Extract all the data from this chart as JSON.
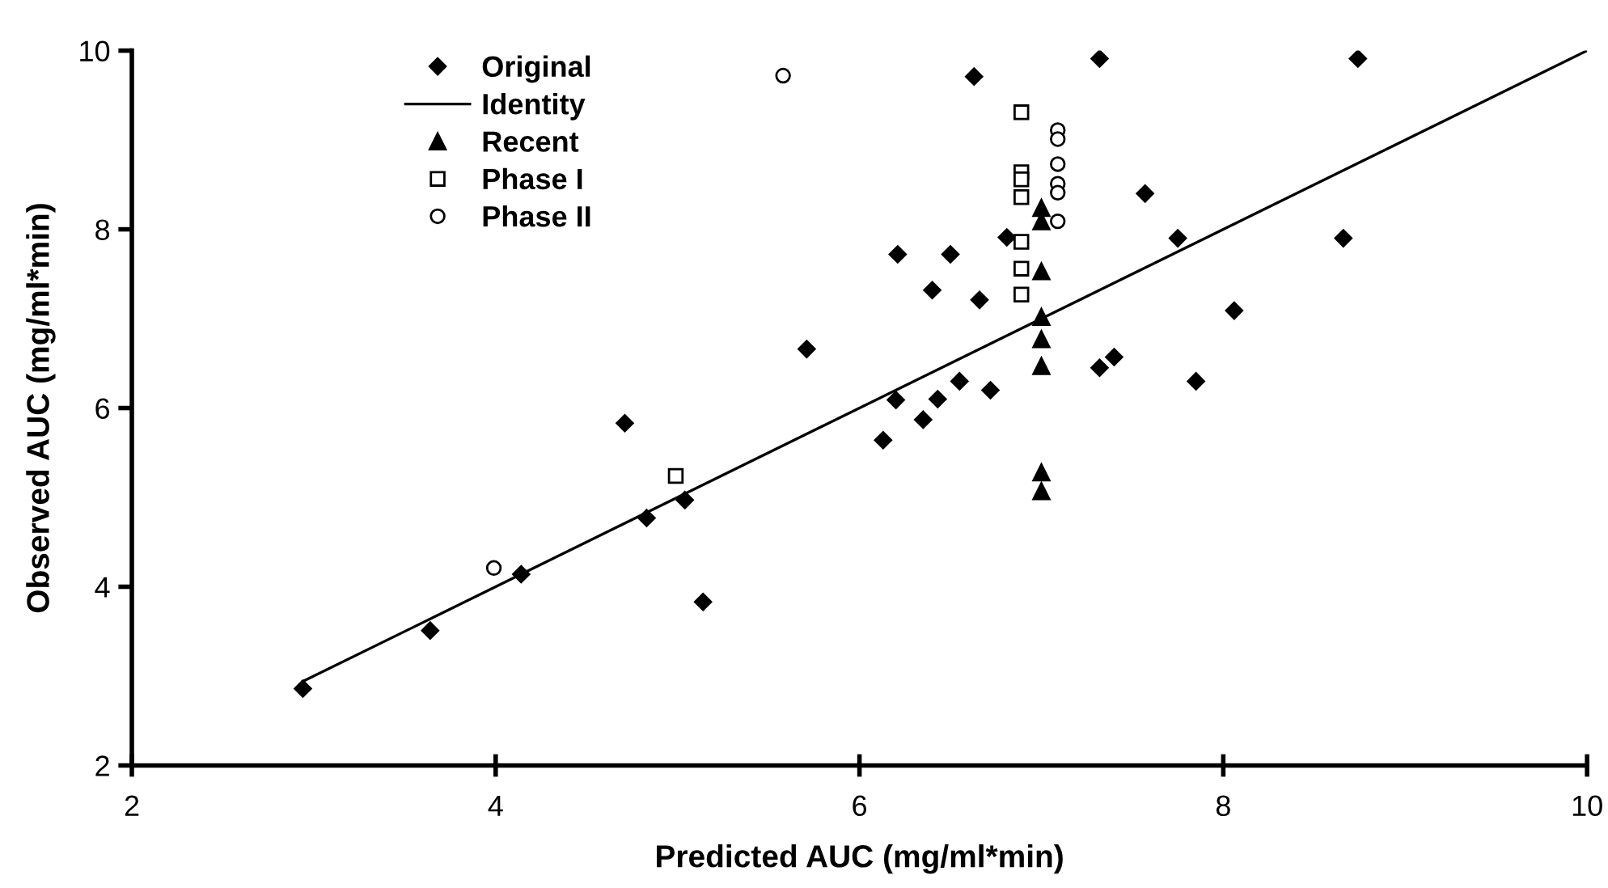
{
  "chart_data": {
    "type": "scatter",
    "xlabel": "Predicted AUC (mg/ml*min)",
    "ylabel": "Observed AUC (mg/ml*min)",
    "xlim": [
      2,
      10
    ],
    "ylim": [
      2,
      10
    ],
    "xticks": [
      2,
      4,
      6,
      8,
      10
    ],
    "yticks": [
      2,
      4,
      6,
      8,
      10
    ],
    "grid": false,
    "legend": "top left",
    "series": [
      {
        "name": "Original",
        "marker": "diamond",
        "color": "#000000",
        "x": [
          2.94,
          3.64,
          4.14,
          4.71,
          4.83,
          5.04,
          5.14,
          6.13,
          5.71,
          6.63,
          7.32,
          8.74,
          7.57,
          7.75,
          8.66,
          6.81,
          6.21,
          6.5,
          6.4,
          6.66,
          8.06,
          7.4,
          7.32,
          7.85,
          6.2,
          6.43,
          6.55,
          6.72,
          6.35
        ],
        "values": [
          2.86,
          3.51,
          4.14,
          5.83,
          4.77,
          4.97,
          3.83,
          5.64,
          6.66,
          9.71,
          9.91,
          9.91,
          8.4,
          7.9,
          7.9,
          7.91,
          7.72,
          7.72,
          7.32,
          7.21,
          7.09,
          6.57,
          6.45,
          6.3,
          6.09,
          6.1,
          6.3,
          6.2,
          5.87
        ]
      },
      {
        "name": "Identity",
        "type": "line",
        "marker": "none",
        "line_style": "solid",
        "color": "#000000",
        "x": [
          2.94,
          10
        ],
        "values": [
          2.94,
          10
        ]
      },
      {
        "name": "Recent",
        "marker": "triangle",
        "color": "#000000",
        "x": [
          7.0,
          7.0,
          7.0,
          7.0,
          7.0,
          7.0,
          7.0,
          7.0
        ],
        "values": [
          8.24,
          8.09,
          7.53,
          7.02,
          6.77,
          6.47,
          5.28,
          5.07
        ]
      },
      {
        "name": "Phase I",
        "marker": "square",
        "color": "#000000",
        "x": [
          4.99,
          6.89,
          6.89,
          6.89,
          6.89,
          6.89,
          6.89,
          6.89
        ],
        "values": [
          5.24,
          9.31,
          8.64,
          8.56,
          8.36,
          7.86,
          7.56,
          7.27
        ]
      },
      {
        "name": "Phase II",
        "marker": "circle",
        "color": "#000000",
        "x": [
          3.99,
          5.58,
          7.09,
          7.09,
          7.09,
          7.09,
          7.09,
          7.09
        ],
        "values": [
          4.21,
          9.72,
          9.11,
          9.01,
          8.73,
          8.51,
          8.41,
          8.09
        ]
      }
    ]
  }
}
